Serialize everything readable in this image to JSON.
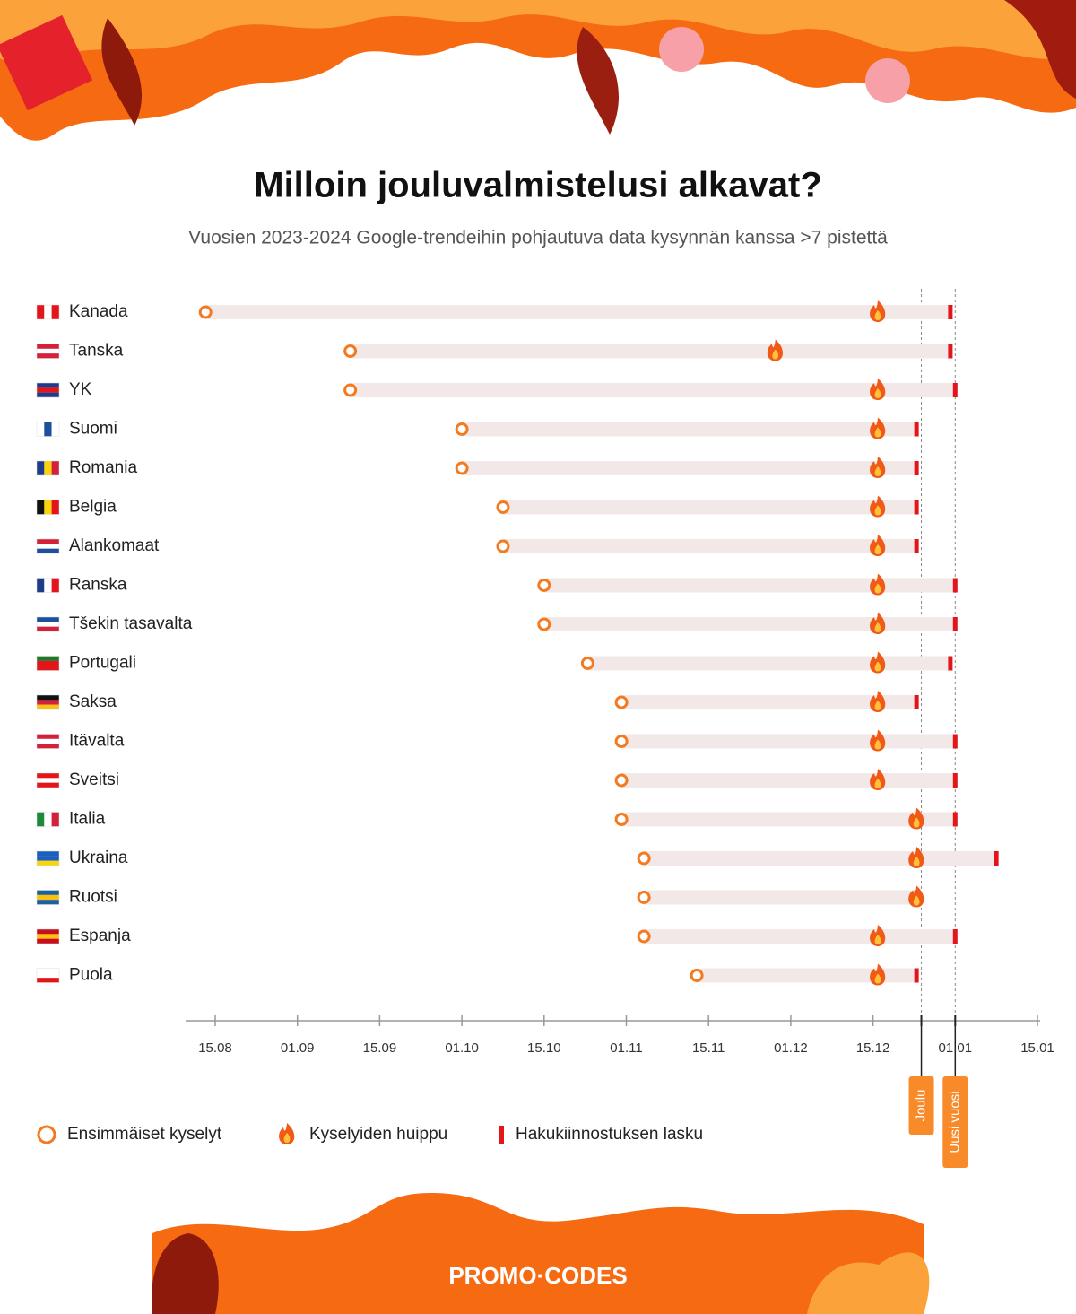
{
  "chart_data": {
    "type": "timeline",
    "title": "Milloin jouluvalmistelusi alkavat?",
    "subtitle": "Vuosien 2023-2024 Google-trendeihin pohjautuva data kysynnän kanssa >7 pistettä",
    "categories": [
      "Kanada",
      "Tanska",
      "YK",
      "Suomi",
      "Romania",
      "Belgia",
      "Alankomaat",
      "Ranska",
      "Tšekin tasavalta",
      "Portugali",
      "Saksa",
      "Itävalta",
      "Sveitsi",
      "Italia",
      "Ukraina",
      "Ruotsi",
      "Espanja",
      "Puola"
    ],
    "series": [
      {
        "name": "Ensimmäiset kyselyt",
        "color": "#f47a20",
        "values": [
          "13.08",
          "10.09",
          "10.09",
          "01.10",
          "01.10",
          "08.10",
          "08.10",
          "15.10",
          "15.10",
          "24.10",
          "31.10",
          "31.10",
          "31.10",
          "31.10",
          "04.11",
          "04.11",
          "04.11",
          "13.11"
        ]
      },
      {
        "name": "Kyselyiden huippu",
        "color": "#f05a16",
        "values": [
          "16.12",
          "28.11",
          "16.12",
          "16.12",
          "16.12",
          "16.12",
          "16.12",
          "16.12",
          "16.12",
          "16.12",
          "16.12",
          "16.12",
          "16.12",
          "24.12",
          "24.12",
          "24.12",
          "16.12",
          "16.12"
        ]
      },
      {
        "name": "Hakukiinnostuksen lasku",
        "color": "#e3151b",
        "values": [
          "31.12",
          "31.12",
          "01.01",
          "24.12",
          "24.12",
          "24.12",
          "24.12",
          "01.01",
          "01.01",
          "31.12",
          "24.12",
          "01.01",
          "01.01",
          "01.01",
          "08.01",
          "24.12",
          "01.01",
          "24.12"
        ]
      }
    ],
    "xticks": [
      "15.08",
      "01.09",
      "15.09",
      "01.10",
      "15.10",
      "01.11",
      "15.11",
      "01.12",
      "15.12",
      "01.01",
      "15.01"
    ],
    "markers": [
      {
        "label": "Joulu",
        "x": "25.12"
      },
      {
        "label": "Uusi vuosi",
        "x": "01.01"
      }
    ],
    "bar_color": "#f2e8e8"
  },
  "brand": "PROMO·CODES"
}
